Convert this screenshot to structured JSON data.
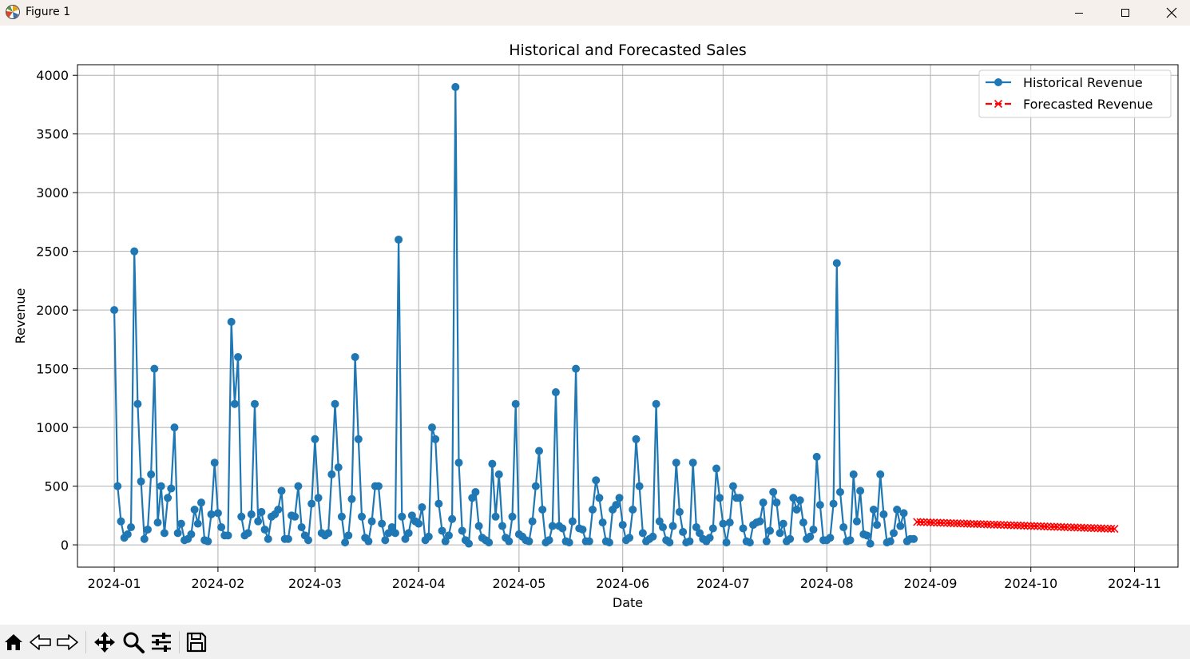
{
  "window": {
    "title": "Figure 1",
    "controls": [
      "minimize",
      "maximize",
      "close"
    ]
  },
  "toolbar": {
    "buttons": [
      "home-icon",
      "back-icon",
      "forward-icon",
      "pan-icon",
      "zoom-icon",
      "configure-subplots-icon",
      "save-icon"
    ]
  },
  "chart_data": {
    "type": "line",
    "title": "Historical and Forecasted Sales",
    "xlabel": "Date",
    "ylabel": "Revenue",
    "x_range": [
      "2023-12-21",
      "2024-11-14"
    ],
    "ylim": [
      -190,
      4090
    ],
    "grid": true,
    "legend_position": "upper-right",
    "x_ticks": [
      "2024-01",
      "2024-02",
      "2024-03",
      "2024-04",
      "2024-05",
      "2024-06",
      "2024-07",
      "2024-08",
      "2024-09",
      "2024-10",
      "2024-11"
    ],
    "y_ticks": [
      "0",
      "500",
      "1000",
      "1500",
      "2000",
      "2500",
      "3000",
      "3500",
      "4000"
    ],
    "series": [
      {
        "name": "Historical Revenue",
        "color": "#1f77b4",
        "marker": "circle",
        "linestyle": "solid",
        "start_date": "2024-01-01",
        "values": [
          2000,
          500,
          200,
          60,
          90,
          150,
          2500,
          1200,
          540,
          50,
          130,
          600,
          1500,
          190,
          500,
          100,
          400,
          480,
          1000,
          100,
          180,
          40,
          50,
          90,
          300,
          180,
          360,
          40,
          30,
          260,
          700,
          270,
          150,
          80,
          80,
          1900,
          1200,
          1600,
          240,
          80,
          100,
          260,
          1200,
          200,
          280,
          130,
          50,
          240,
          260,
          300,
          460,
          50,
          50,
          250,
          240,
          500,
          150,
          80,
          40,
          350,
          900,
          400,
          100,
          80,
          100,
          600,
          1200,
          660,
          240,
          20,
          80,
          390,
          1600,
          900,
          240,
          60,
          30,
          200,
          500,
          500,
          180,
          40,
          100,
          150,
          100,
          2600,
          240,
          50,
          100,
          250,
          200,
          180,
          320,
          40,
          70,
          1000,
          900,
          350,
          120,
          30,
          80,
          220,
          3900,
          700,
          120,
          40,
          10,
          400,
          450,
          160,
          60,
          40,
          20,
          690,
          240,
          600,
          160,
          60,
          30,
          240,
          1200,
          90,
          70,
          40,
          30,
          200,
          500,
          800,
          300,
          20,
          40,
          160,
          1300,
          160,
          140,
          30,
          20,
          200,
          1500,
          140,
          130,
          30,
          30,
          300,
          550,
          400,
          190,
          30,
          20,
          300,
          340,
          400,
          170,
          40,
          60,
          300,
          900,
          500,
          100,
          30,
          50,
          70,
          1200,
          200,
          150,
          40,
          20,
          160,
          700,
          280,
          110,
          20,
          30,
          700,
          150,
          100,
          50,
          30,
          60,
          140,
          650,
          400,
          180,
          20,
          190,
          500,
          400,
          400,
          140,
          30,
          20,
          170,
          190,
          200,
          360,
          30,
          120,
          450,
          360,
          100,
          180,
          30,
          50,
          400,
          300,
          380,
          190,
          50,
          70,
          130,
          750,
          340,
          40,
          40,
          60,
          350,
          2400,
          450,
          150,
          30,
          40,
          600,
          200,
          460,
          90,
          80,
          10,
          300,
          170,
          600,
          260,
          20,
          30,
          100,
          300,
          160,
          270,
          30,
          50,
          50
        ]
      },
      {
        "name": "Forecasted Revenue",
        "color": "#ff0000",
        "marker": "x",
        "linestyle": "dashed",
        "start_date": "2024-08-28",
        "values": [
          195,
          194,
          193,
          192,
          191,
          190,
          189,
          188,
          187,
          186,
          185,
          184,
          183,
          182,
          181,
          180,
          179,
          178,
          177,
          176,
          175,
          174,
          173,
          172,
          171,
          170,
          169,
          168,
          167,
          166,
          165,
          164,
          163,
          162,
          161,
          160,
          159,
          158,
          157,
          156,
          155,
          154,
          153,
          152,
          151,
          150,
          149,
          148,
          147,
          146,
          145,
          144,
          143,
          142,
          141,
          140,
          139,
          138,
          137,
          136
        ]
      }
    ]
  }
}
